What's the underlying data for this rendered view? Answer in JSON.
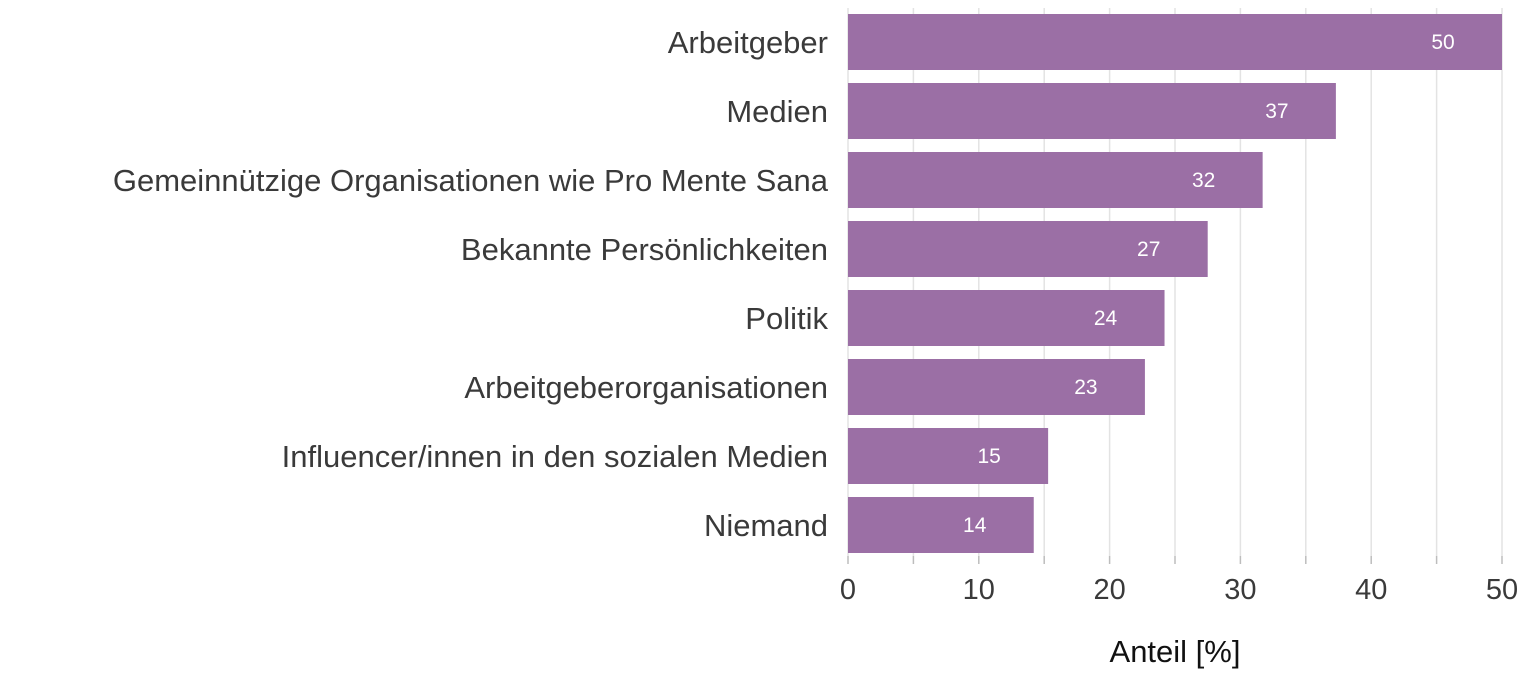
{
  "chart_data": {
    "type": "bar",
    "orientation": "horizontal",
    "categories": [
      "Arbeitgeber",
      "Medien",
      "Gemeinnützige Organisationen wie Pro Mente Sana",
      "Bekannte Persönlichkeiten",
      "Politik",
      "Arbeitgeberorganisationen",
      "Influencer/innen in den sozialen Medien",
      "Niemand"
    ],
    "values": [
      50,
      37,
      32,
      27,
      24,
      23,
      15,
      14
    ],
    "bar_lengths": [
      50,
      37.3,
      31.7,
      27.5,
      24.2,
      22.7,
      15.3,
      14.2
    ],
    "value_labels": [
      "50",
      "37",
      "32",
      "27",
      "24",
      "23",
      "15",
      "14"
    ],
    "xlabel": "Anteil [%]",
    "xlim": [
      0,
      50
    ],
    "xticks": [
      0,
      10,
      20,
      30,
      40,
      50
    ],
    "xtick_labels": [
      "0",
      "10",
      "20",
      "30",
      "40",
      "50"
    ],
    "minor_grid_step": 5,
    "grid": true,
    "colors": {
      "bar": "#9b6fa5",
      "grid": "#e3e3e3",
      "text": "#3a3a3a",
      "value_text": "#ffffff"
    }
  }
}
